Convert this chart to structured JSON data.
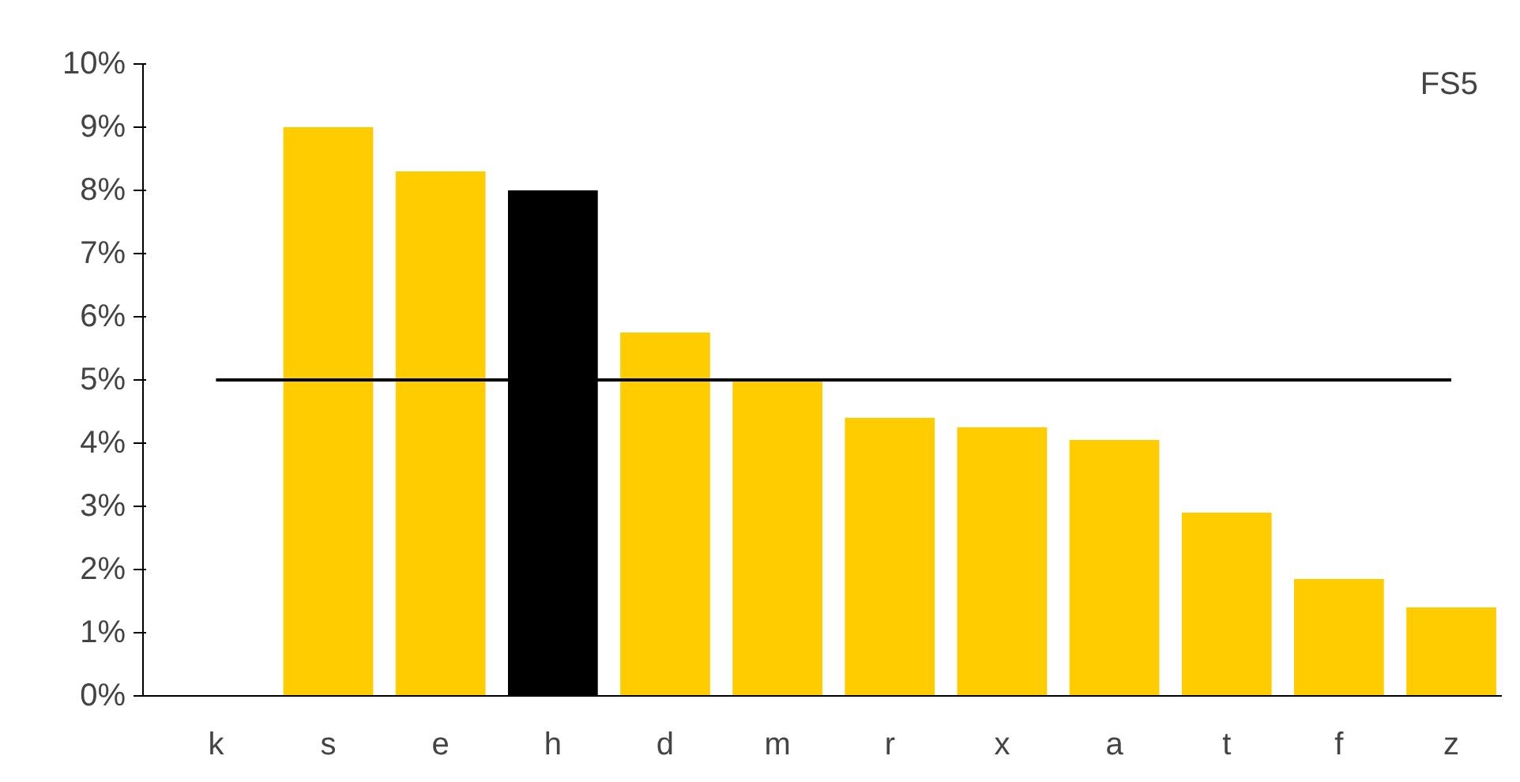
{
  "chart_data": {
    "type": "bar",
    "categories": [
      "k",
      "s",
      "e",
      "h",
      "d",
      "m",
      "r",
      "x",
      "a",
      "t",
      "f",
      "z"
    ],
    "series": [
      {
        "colors": [
          "#ffcc00",
          "#ffcc00",
          "#ffcc00",
          "#000000",
          "#ffcc00",
          "#ffcc00",
          "#ffcc00",
          "#ffcc00",
          "#ffcc00",
          "#ffcc00",
          "#ffcc00",
          "#ffcc00"
        ],
        "values": [
          0,
          9.0,
          8.3,
          8.0,
          5.75,
          5.0,
          4.4,
          4.25,
          4.05,
          2.9,
          1.85,
          1.4
        ]
      },
      {
        "type": "line",
        "color": "#000000",
        "values": [
          5,
          5,
          5,
          5,
          5,
          5,
          5,
          5,
          5,
          5,
          5,
          5
        ]
      }
    ],
    "ylim": [
      0,
      10
    ],
    "yticks": [
      {
        "value": 0,
        "label": "0%"
      },
      {
        "value": 1,
        "label": "1%"
      },
      {
        "value": 2,
        "label": "2%"
      },
      {
        "value": 3,
        "label": "3%"
      },
      {
        "value": 4,
        "label": "4%"
      },
      {
        "value": 5,
        "label": "5%"
      },
      {
        "value": 6,
        "label": "6%"
      },
      {
        "value": 7,
        "label": "7%"
      },
      {
        "value": 8,
        "label": "8%"
      },
      {
        "value": 9,
        "label": "9%"
      },
      {
        "value": 10,
        "label": "10%"
      }
    ],
    "annotations": [
      "FS5"
    ],
    "grid": false
  }
}
